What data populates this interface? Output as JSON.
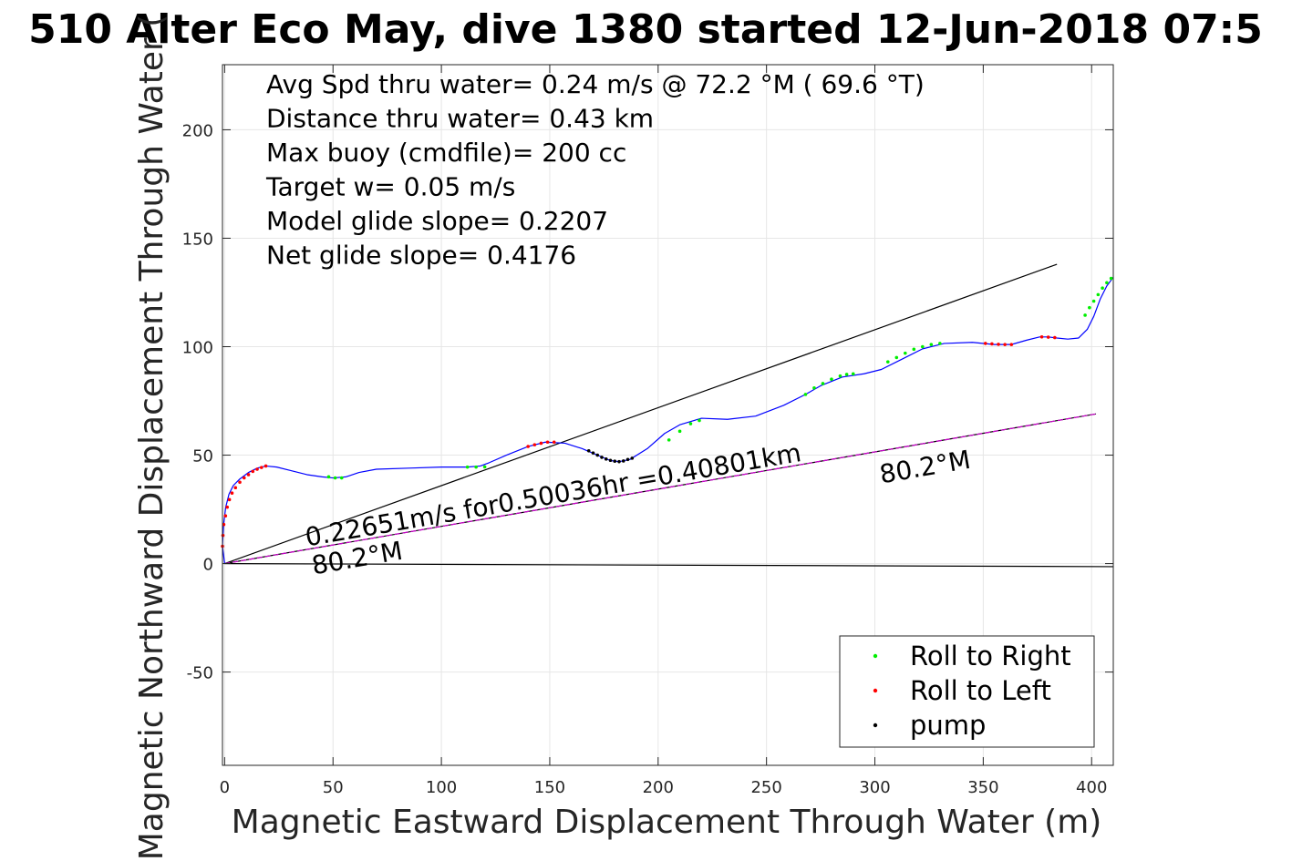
{
  "chart_data": {
    "type": "line",
    "title": "510 Alter Eco May, dive 1380 started 12-Jun-2018 07:5",
    "xlabel": "Magnetic Eastward Displacement Through Water (m)",
    "ylabel": "Magnetic Northward Displacement Through Water (",
    "xlim": [
      -1,
      410
    ],
    "ylim": [
      -93,
      230
    ],
    "xticks": [
      "0",
      "50",
      "100",
      "150",
      "200",
      "250",
      "300",
      "350",
      "400"
    ],
    "xtick_values": [
      0,
      50,
      100,
      150,
      200,
      250,
      300,
      350,
      400
    ],
    "yticks": [
      "-50",
      "0",
      "50",
      "100",
      "150",
      "200"
    ],
    "ytick_values": [
      -50,
      0,
      50,
      100,
      150,
      200
    ],
    "grid": true,
    "stats": [
      "Avg Spd thru water=  0.24 m/s @  72.2 °M ( 69.6 °T)",
      "Distance thru water=  0.43 km",
      "Max buoy (cmdfile)= 200 cc",
      "Target w= 0.05 m/s",
      "Model glide slope= 0.2207",
      "Net glide slope= 0.4176"
    ],
    "annotations": [
      {
        "text": "0.22651m/s for0.50036hr =0.40801km",
        "x": 38,
        "y": 8,
        "angle": 9.8
      },
      {
        "text": "80.2°M",
        "x": 41,
        "y": -5,
        "angle": 9.8
      },
      {
        "text": "80.2°M",
        "x": 303,
        "y": 37,
        "angle": 9.8
      }
    ],
    "track": {
      "name": "displacement track",
      "color": "#0000ff",
      "x": [
        0,
        -1,
        -0.5,
        0.5,
        2,
        4,
        7,
        11,
        15,
        19,
        24,
        30,
        38,
        45,
        50,
        56,
        62,
        70,
        85,
        100,
        112,
        118,
        122,
        130,
        140,
        148,
        157,
        165,
        172,
        178,
        182,
        187,
        195,
        203,
        210,
        220,
        232,
        245,
        258,
        268,
        275,
        285,
        295,
        303,
        312,
        322,
        332,
        345,
        355,
        363,
        370,
        376,
        380,
        384,
        389,
        394,
        398,
        401,
        404,
        407,
        410
      ],
      "y": [
        0,
        8,
        18,
        26,
        32,
        36,
        39,
        42,
        44,
        45,
        44.5,
        43,
        41,
        40,
        39.5,
        40,
        42,
        43.5,
        44,
        44.5,
        44.5,
        45,
        46.5,
        50,
        54,
        56,
        55.5,
        53,
        50,
        47.5,
        47,
        48,
        53,
        60,
        64,
        67,
        66.5,
        68,
        73,
        78,
        82,
        86,
        87.5,
        89.5,
        94,
        99,
        101.5,
        102,
        101,
        101,
        103,
        104.5,
        104.5,
        104,
        103.5,
        104,
        108,
        114,
        122,
        128,
        132
      ]
    },
    "direction_lines": [
      {
        "name": "line 1",
        "color": "#000000",
        "x": [
          0,
          384
        ],
        "y": [
          0,
          138
        ]
      },
      {
        "name": "line 2",
        "color": "#000000",
        "x": [
          0,
          402
        ],
        "y": [
          0,
          69
        ]
      },
      {
        "name": "line 3",
        "color": "#cc00cc",
        "x": [
          0,
          402
        ],
        "y": [
          0,
          69
        ]
      },
      {
        "name": "line 4",
        "color": "#000000",
        "x": [
          0,
          410
        ],
        "y": [
          0,
          -1.4
        ]
      }
    ],
    "markers": [
      {
        "name": "Roll to Right",
        "color": "#00ee00",
        "x": [
          48,
          51,
          54,
          112,
          116,
          120,
          268,
          272,
          276,
          280,
          284,
          287,
          290,
          306,
          310,
          314,
          318,
          322,
          326,
          330,
          397,
          399,
          401,
          403,
          405,
          407,
          409,
          215,
          219,
          210,
          205
        ],
        "y": [
          40,
          39.5,
          39.5,
          44.5,
          44.5,
          44.6,
          78,
          81,
          83,
          85,
          86.5,
          87.2,
          87.5,
          93,
          95,
          97,
          98.8,
          100,
          101,
          101.5,
          114.5,
          118,
          121,
          124,
          127,
          129.5,
          131.5,
          64.5,
          66,
          61,
          57
        ]
      },
      {
        "name": "Roll to Left",
        "color": "#ff0000",
        "x": [
          -1,
          -0.8,
          -0.4,
          0.4,
          1.2,
          2.2,
          3.4,
          5,
          7,
          9,
          11,
          13,
          15,
          17,
          19,
          140,
          143,
          146,
          149,
          152,
          351,
          354,
          357,
          360,
          363,
          377,
          380,
          383
        ],
        "y": [
          8,
          13,
          18,
          22,
          26,
          29.5,
          32.5,
          35,
          37.5,
          39.5,
          41,
          42.5,
          43.5,
          44.3,
          45,
          54,
          54.8,
          55.5,
          56,
          56,
          101.5,
          101.3,
          101.1,
          101,
          101,
          104.5,
          104.4,
          104.2
        ]
      },
      {
        "name": "pump",
        "color": "#000000",
        "x": [
          168,
          170,
          172,
          174,
          176,
          178,
          180,
          182,
          184,
          186,
          188
        ],
        "y": [
          52,
          51,
          50,
          49,
          48.2,
          47.6,
          47.2,
          47,
          47.3,
          48,
          48.6
        ]
      }
    ],
    "legend": {
      "placement": "bottom-right",
      "entries": [
        {
          "label": "Roll to Right",
          "color": "#00ee00"
        },
        {
          "label": "Roll to Left",
          "color": "#ff0000"
        },
        {
          "label": "pump",
          "color": "#000000"
        }
      ]
    }
  }
}
